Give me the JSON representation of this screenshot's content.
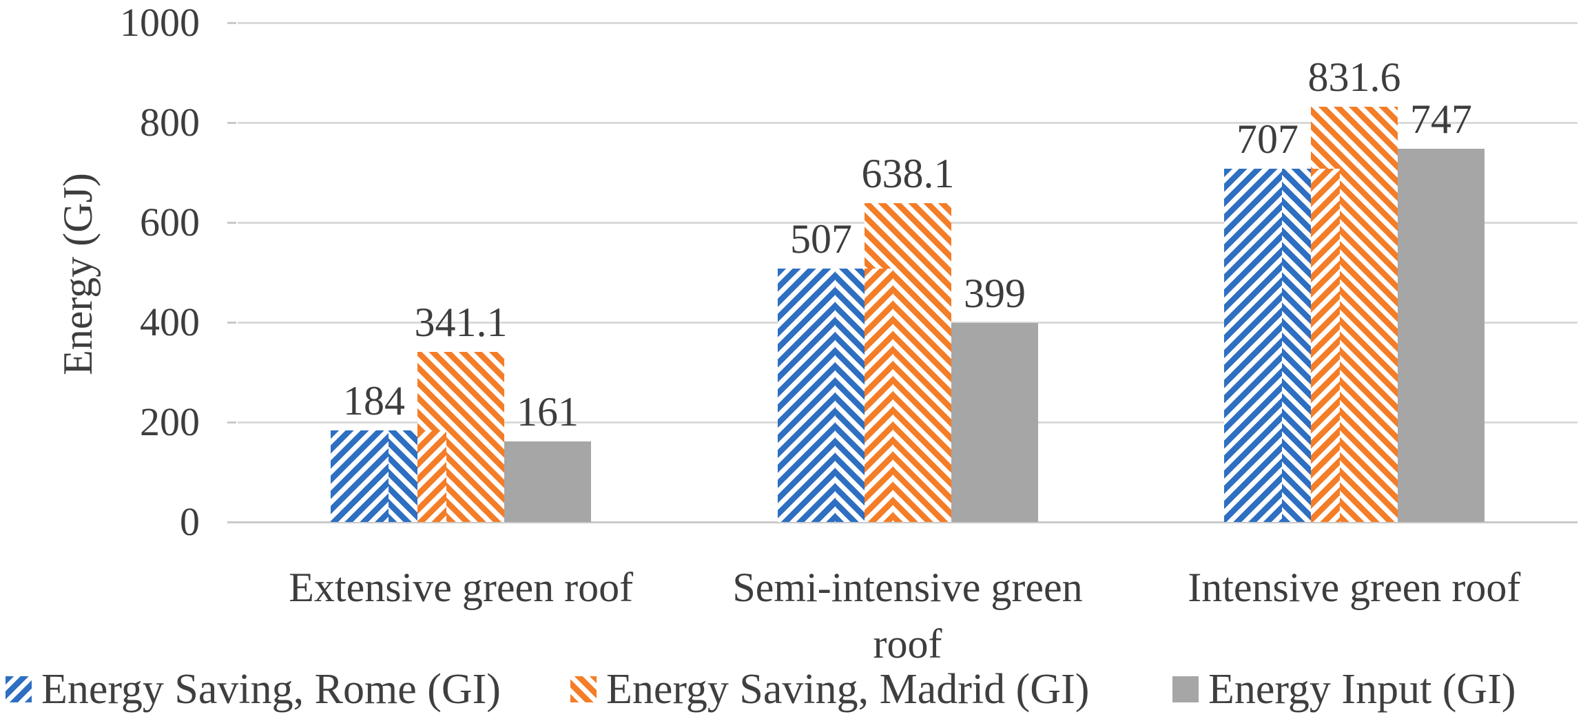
{
  "chart_data": {
    "type": "bar",
    "title": "",
    "xlabel": "",
    "ylabel": "Energy (GJ)",
    "ylim": [
      0,
      1000
    ],
    "yticks": [
      0,
      200,
      400,
      600,
      800,
      1000
    ],
    "grid": true,
    "legend_position": "bottom",
    "categories": [
      "Extensive green roof",
      "Semi-intensive green roof",
      "Intensive green roof"
    ],
    "series": [
      {
        "name": "Energy Saving, Rome (GI)",
        "pattern": "diagonal-up-hatch",
        "color": "#2e6fc1",
        "values": [
          184,
          507,
          707
        ]
      },
      {
        "name": "Energy Saving, Madrid (GI)",
        "pattern": "diagonal-down-hatch",
        "color": "#f47d28",
        "values": [
          341.1,
          638.1,
          831.6
        ]
      },
      {
        "name": "Energy Input (GI)",
        "pattern": "solid",
        "color": "#a6a6a6",
        "values": [
          161,
          399,
          747
        ]
      }
    ],
    "data_labels": {
      "Energy Saving, Rome (GI)": [
        "184",
        "507",
        "707"
      ],
      "Energy Saving, Madrid (GI)": [
        "341.1",
        "638.1",
        "831.6"
      ],
      "Energy Input (GI)": [
        "161",
        "399",
        "747"
      ]
    },
    "colors": {
      "gridline": "#d9d9d9",
      "axis": "#c9c9c9",
      "text": "#3d3d3d"
    }
  }
}
